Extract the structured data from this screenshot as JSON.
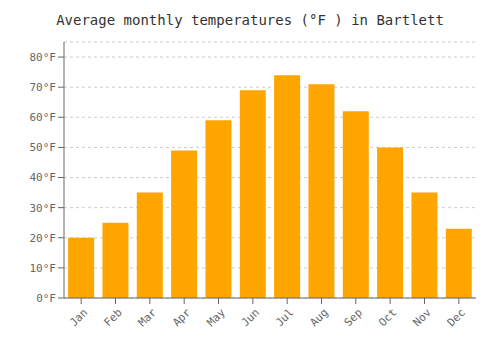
{
  "chart_data": {
    "type": "bar",
    "title": "Average monthly temperatures (°F ) in Bartlett",
    "categories": [
      "Jan",
      "Feb",
      "Mar",
      "Apr",
      "May",
      "Jun",
      "Jul",
      "Aug",
      "Sep",
      "Oct",
      "Nov",
      "Dec"
    ],
    "values": [
      20,
      25,
      35,
      49,
      59,
      69,
      74,
      71,
      62,
      50,
      35,
      23
    ],
    "color": "#FFA500",
    "ylim": [
      0,
      85
    ],
    "yticks": [
      {
        "value": 0,
        "label": "0°F"
      },
      {
        "value": 10,
        "label": "10°F"
      },
      {
        "value": 20,
        "label": "20°F"
      },
      {
        "value": 30,
        "label": "30°F"
      },
      {
        "value": 40,
        "label": "40°F"
      },
      {
        "value": 50,
        "label": "50°F"
      },
      {
        "value": 60,
        "label": "60°F"
      },
      {
        "value": 70,
        "label": "70°F"
      },
      {
        "value": 80,
        "label": "80°F"
      }
    ],
    "grid": true
  }
}
